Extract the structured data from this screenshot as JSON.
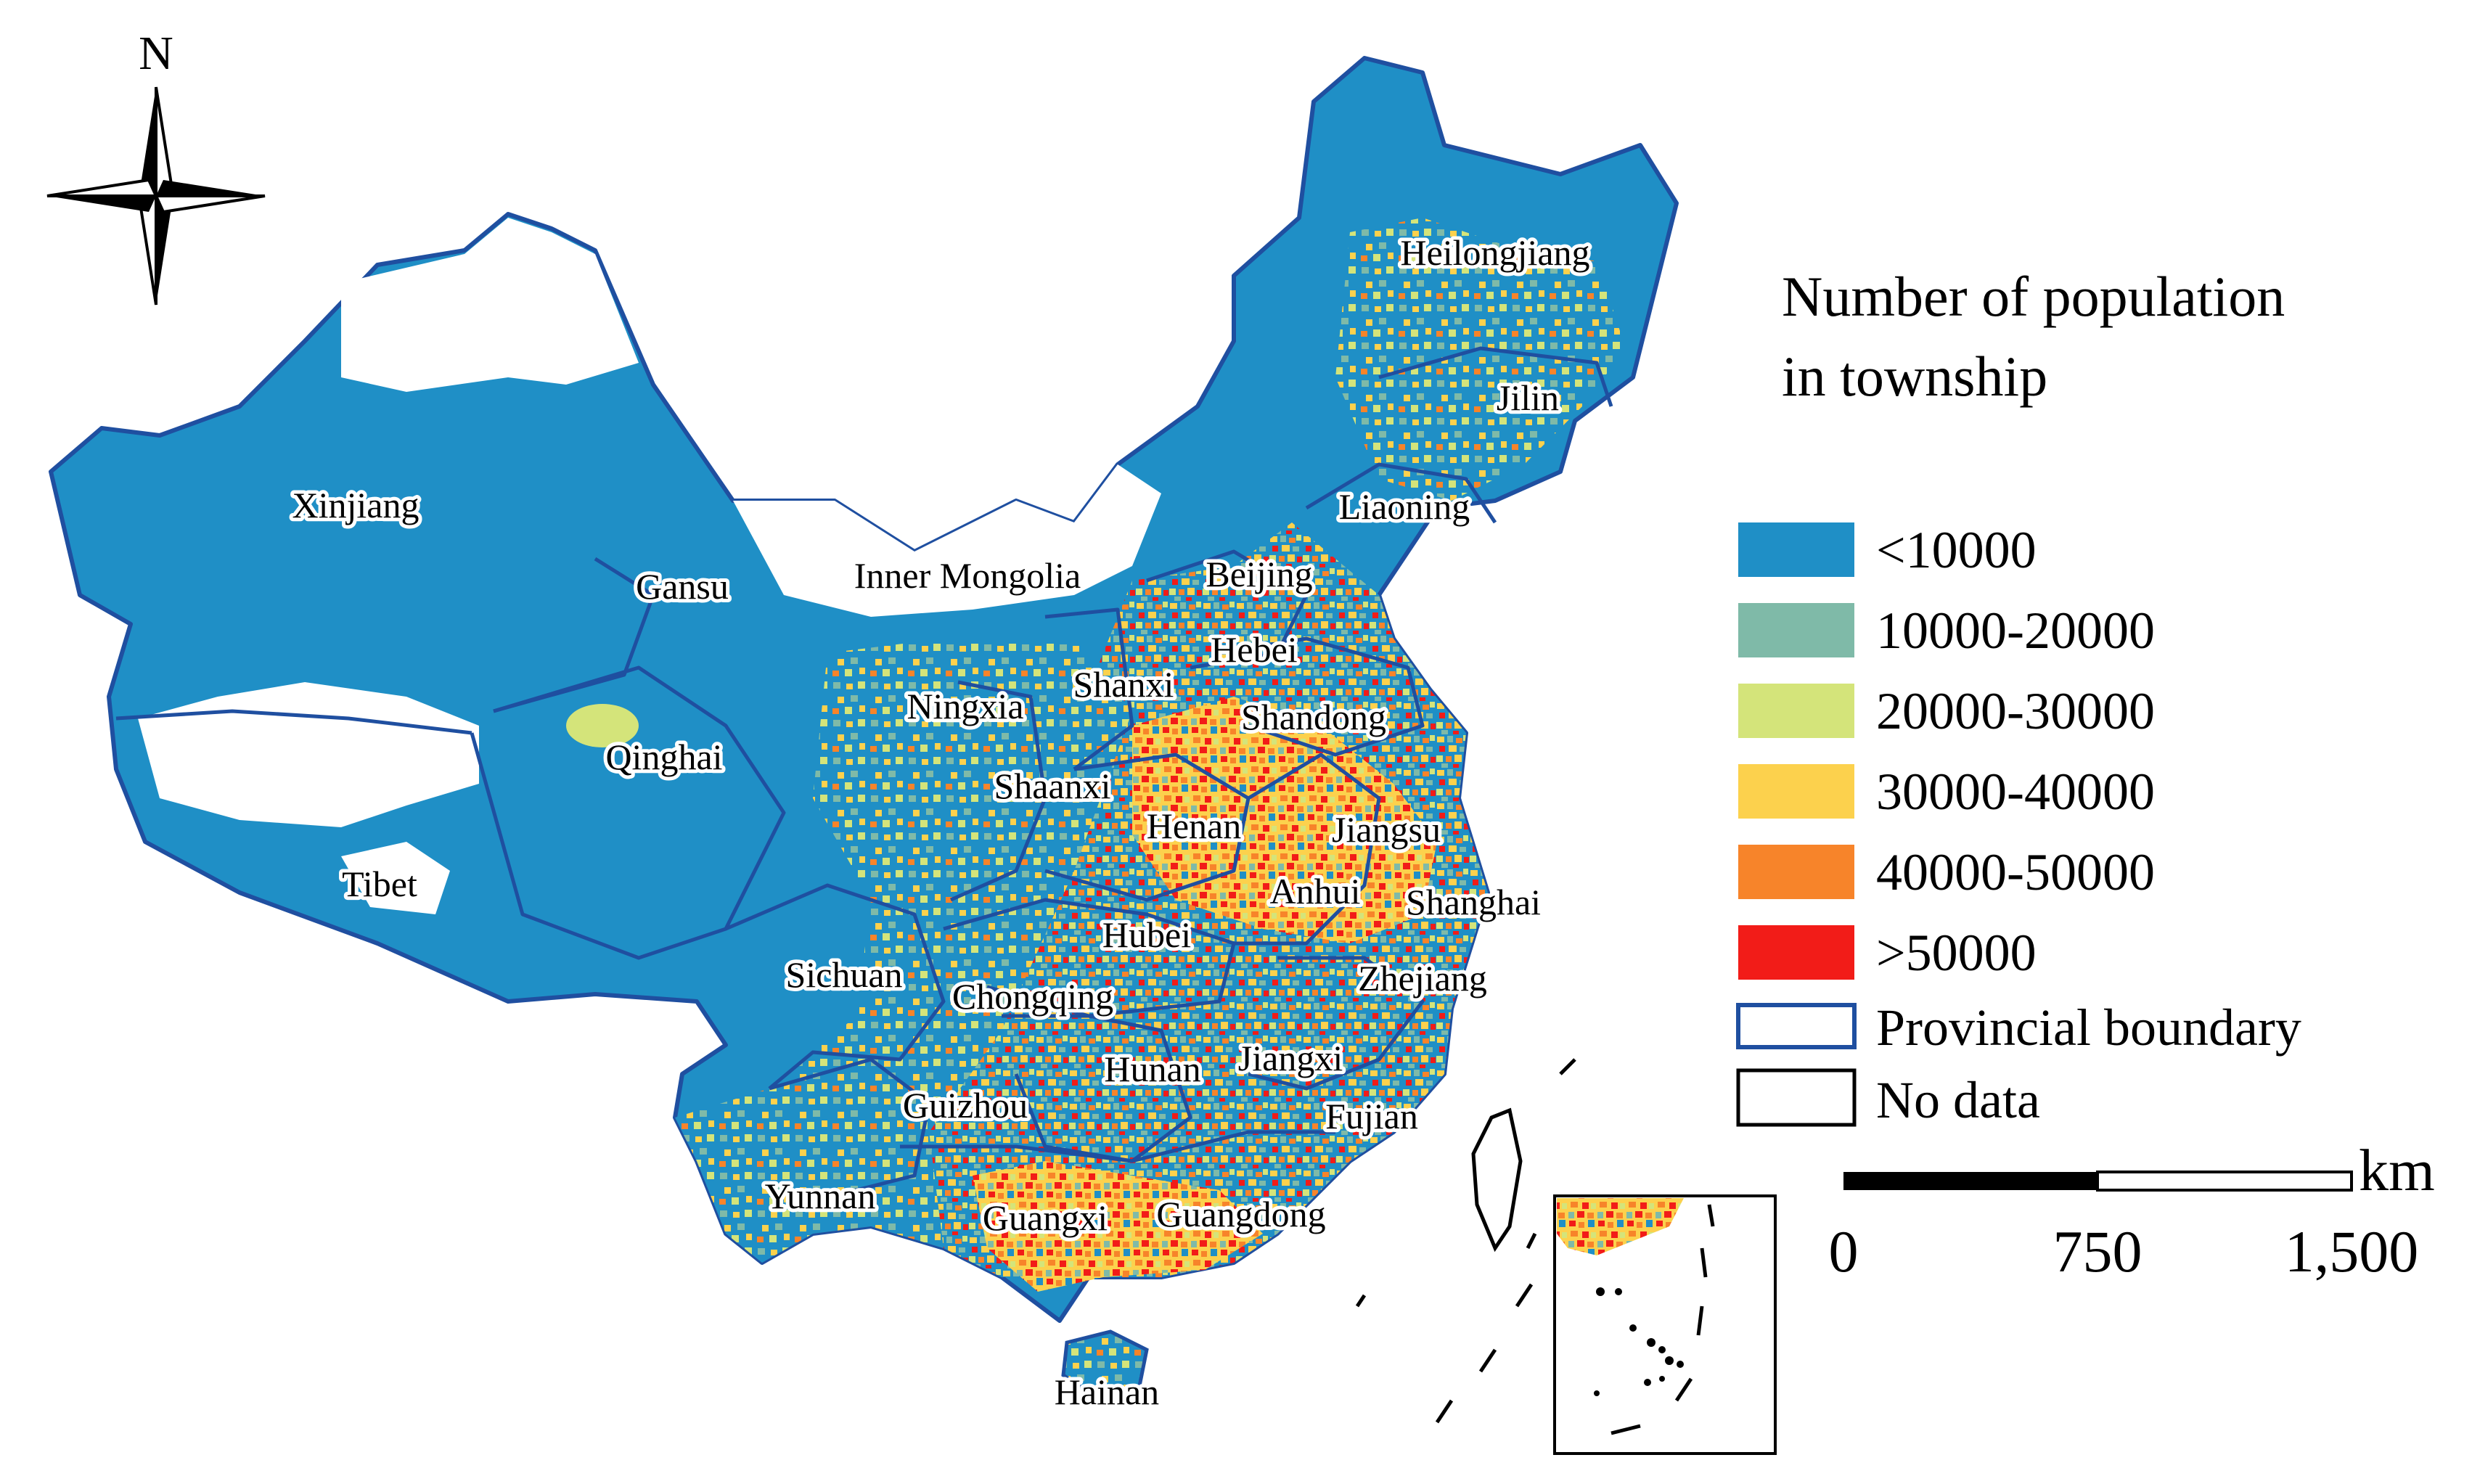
{
  "north_arrow": {
    "label": "N"
  },
  "legend": {
    "title_line1": "Number of population",
    "title_line2": "in township",
    "classes": [
      {
        "label": "<10000",
        "color": "#1f8fc6"
      },
      {
        "label": "10000-20000",
        "color": "#7fbaa8"
      },
      {
        "label": "20000-30000",
        "color": "#d4e47a"
      },
      {
        "label": "30000-40000",
        "color": "#fcd14d"
      },
      {
        "label": "40000-50000",
        "color": "#f7842a"
      },
      {
        "label": ">50000",
        "color": "#f21c18"
      }
    ],
    "boundary": {
      "label": "Provincial boundary",
      "color": "#1f4fa0"
    },
    "no_data": {
      "label": "No data",
      "color": "#ffffff"
    }
  },
  "scale_bar": {
    "unit": "km",
    "ticks": [
      "0",
      "750",
      "1,500"
    ]
  },
  "provinces": [
    "Heilongjiang",
    "Jilin",
    "Liaoning",
    "Xinjiang",
    "Inner Mongolia",
    "Beijing",
    "Gansu",
    "Hebei",
    "Shanxi",
    "Ningxia",
    "Shandong",
    "Qinghai",
    "Shaanxi",
    "Henan",
    "Jiangsu",
    "Tibet",
    "Anhui",
    "Shanghai",
    "Hubei",
    "Sichuan",
    "Chongqing",
    "Zhejiang",
    "Jiangxi",
    "Hunan",
    "Guizhou",
    "Fujian",
    "Yunnan",
    "Guangxi",
    "Guangdong",
    "Hainan"
  ]
}
